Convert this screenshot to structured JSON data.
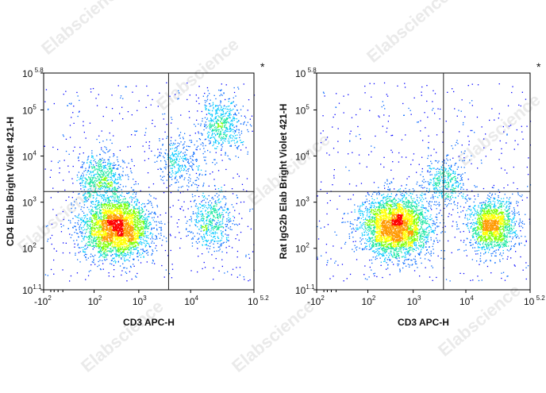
{
  "watermark": "Elabscience",
  "colors": {
    "density": [
      "#0000ff",
      "#0066ff",
      "#00c8ff",
      "#19e6a0",
      "#7fff00",
      "#ffff00",
      "#ff9900",
      "#ff0000"
    ],
    "gate": "#222222",
    "frame": "#000000"
  },
  "chart_data": [
    {
      "type": "scatter",
      "title": "",
      "corner_mark": "*",
      "xlabel": "CD3 APC-H",
      "ylabel": "CD4 Elab Bright Violet 421-H",
      "x_scale": "biexponential",
      "y_scale": "log",
      "x_ticks": [
        {
          "base": "-10",
          "exp": "2"
        },
        {
          "base": "10",
          "exp": "2"
        },
        {
          "base": "10",
          "exp": "3"
        },
        {
          "base": "10",
          "exp": "4"
        },
        {
          "base": "10",
          "exp": " 5.2"
        }
      ],
      "y_ticks": [
        {
          "base": "10",
          "exp": "1.1"
        },
        {
          "base": "10",
          "exp": "2"
        },
        {
          "base": "10",
          "exp": "3"
        },
        {
          "base": "10",
          "exp": "4"
        },
        {
          "base": "10",
          "exp": "5"
        },
        {
          "base": "10",
          "exp": " 5.8"
        }
      ],
      "xlim": [
        -100,
        158489
      ],
      "ylim": [
        12.6,
        631000
      ],
      "quadrant_gate": {
        "x": 3800,
        "y": 1700
      },
      "populations": [
        {
          "name_shown": false,
          "cx": 350,
          "cy": 280,
          "density": 0.62
        },
        {
          "name_shown": false,
          "cx": 25000,
          "cy": 420,
          "density": 0.1
        },
        {
          "name_shown": false,
          "cx": 38000,
          "cy": 50000,
          "density": 0.1
        },
        {
          "name_shown": false,
          "cx": 6000,
          "cy": 8000,
          "density": 0.06
        },
        {
          "name_shown": false,
          "cx": 150,
          "cy": 3000,
          "density": 0.12
        }
      ]
    },
    {
      "type": "scatter",
      "title": "",
      "corner_mark": "*",
      "xlabel": "CD3 APC-H",
      "ylabel": "Rat IgG2b Elab Bright Violet 421-H",
      "x_scale": "biexponential",
      "y_scale": "log",
      "x_ticks": [
        {
          "base": "-10",
          "exp": "2"
        },
        {
          "base": "10",
          "exp": "2"
        },
        {
          "base": "10",
          "exp": "3"
        },
        {
          "base": "10",
          "exp": "4"
        },
        {
          "base": "10",
          "exp": " 5.2"
        }
      ],
      "y_ticks": [
        {
          "base": "10",
          "exp": "1.1"
        },
        {
          "base": "10",
          "exp": "2"
        },
        {
          "base": "10",
          "exp": "3"
        },
        {
          "base": "10",
          "exp": "4"
        },
        {
          "base": "10",
          "exp": "5"
        },
        {
          "base": "10",
          "exp": " 5.8"
        }
      ],
      "xlim": [
        -100,
        158489
      ],
      "ylim": [
        12.6,
        631000
      ],
      "quadrant_gate": {
        "x": 3800,
        "y": 1700
      },
      "populations": [
        {
          "name_shown": false,
          "cx": 420,
          "cy": 300,
          "density": 0.62
        },
        {
          "name_shown": false,
          "cx": 30000,
          "cy": 320,
          "density": 0.3
        },
        {
          "name_shown": false,
          "cx": 4000,
          "cy": 2500,
          "density": 0.08
        }
      ]
    }
  ]
}
